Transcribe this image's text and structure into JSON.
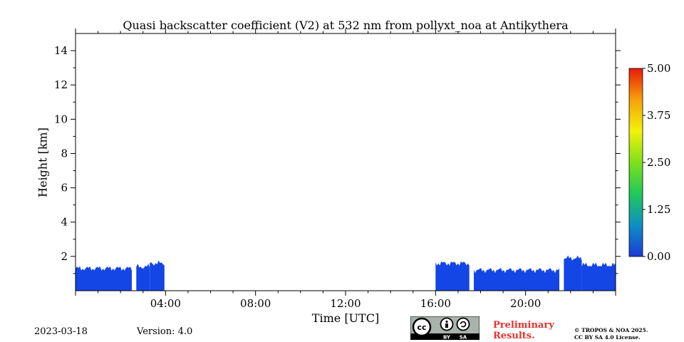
{
  "chart_data": {
    "type": "heatmap",
    "title": "Quasi backscatter coefficient (V2) at 532 nm from pollyxt_noa at Antikythera",
    "xlabel": "Time [UTC]",
    "ylabel": "Height [km]",
    "xlim_hours": [
      0,
      24
    ],
    "ylim_km": [
      0,
      15
    ],
    "x_tick_labels": [
      "04:00",
      "08:00",
      "12:00",
      "16:00",
      "20:00"
    ],
    "x_tick_hours": [
      4,
      8,
      12,
      16,
      20
    ],
    "y_tick_values": [
      2,
      4,
      6,
      8,
      10,
      12,
      14
    ],
    "colorbar": {
      "vmin": 0.0,
      "vmax": 5.0,
      "tick_labels": [
        "0.00",
        "1.25",
        "2.50",
        "3.75",
        "5.00"
      ],
      "tick_values": [
        0,
        1.25,
        2.5,
        3.75,
        5.0
      ],
      "colors": [
        "#1a3bd6",
        "#0e8fc4",
        "#20c85a",
        "#7ee11a",
        "#f2f20a",
        "#f7a20a",
        "#e81a0a"
      ]
    },
    "fill_color": "#1446e6",
    "grid": false,
    "segments": [
      {
        "start_hour": 0.0,
        "end_hour": 2.5,
        "top_km": 1.3
      },
      {
        "start_hour": 2.7,
        "end_hour": 3.3,
        "top_km": 1.4
      },
      {
        "start_hour": 3.3,
        "end_hour": 3.95,
        "top_km": 1.6
      },
      {
        "start_hour": 16.0,
        "end_hour": 17.5,
        "top_km": 1.6
      },
      {
        "start_hour": 17.7,
        "end_hour": 21.5,
        "top_km": 1.2
      },
      {
        "start_hour": 21.7,
        "end_hour": 22.5,
        "top_km": 1.9
      },
      {
        "start_hour": 22.5,
        "end_hour": 24.0,
        "top_km": 1.5
      }
    ]
  },
  "footer": {
    "date": "2023-03-18",
    "version": "Version: 4.0",
    "preliminary_line1": "Preliminary",
    "preliminary_line2": "Results.",
    "copyright_line1": "© TROPOS & NOA 2025.",
    "copyright_line2": "CC BY SA 4.0 License.",
    "badge_by": "BY",
    "badge_sa": "SA"
  }
}
